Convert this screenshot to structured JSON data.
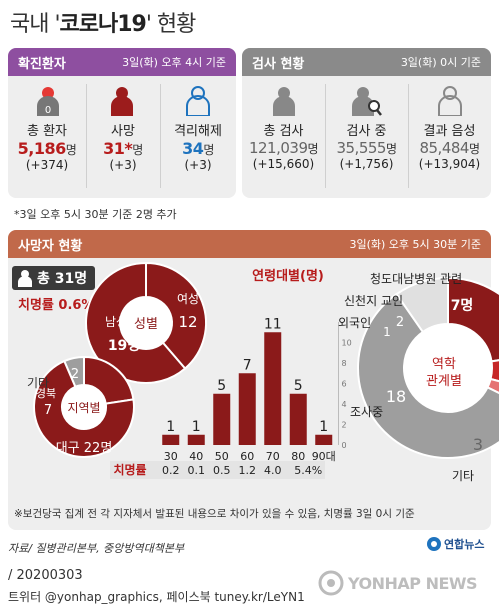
{
  "title_pre": "국내 '",
  "title_bold": "코로나19",
  "title_post": "' 현황",
  "confirmed": {
    "header": "확진환자",
    "date": "3일(화) 오후 4시 기준",
    "items": [
      {
        "label": "총 환자",
        "value": "5,186",
        "unit": "명",
        "change": "(+374)",
        "color": "#b71c1c"
      },
      {
        "label": "사망",
        "value": "31*",
        "unit": "명",
        "change": "(+3)",
        "color": "#b71c1c"
      },
      {
        "label": "격리해제",
        "value": "34",
        "unit": "명",
        "change": "(+3)",
        "color": "#1e73be"
      }
    ]
  },
  "tests": {
    "header": "검사 현황",
    "date": "3일(화) 0시 기준",
    "items": [
      {
        "label": "총 검사",
        "value": "121,039",
        "unit": "명",
        "change": "(+15,660)"
      },
      {
        "label": "검사 중",
        "value": "35,555",
        "unit": "명",
        "change": "(+1,756)"
      },
      {
        "label": "결과 음성",
        "value": "85,484",
        "unit": "명",
        "change": "(+13,904)"
      }
    ]
  },
  "footnote": "*3일 오후 5시 30분 기준 2명 추가",
  "deaths": {
    "header": "사망자 현황",
    "date": "3일(화) 오후 5시 30분 기준",
    "total": "총 31명",
    "fatality": "치명률 0.6%",
    "note": "※보건당국 집계 전 각 지자체서 발표된 내용으로 차이가 있을 수 있음, 치명률 3일 0시 기준"
  },
  "source": "자료/ 질병관리본부, 중앙방역대책본부",
  "logo_text": "연합뉴스",
  "date_line": "/ 20200303",
  "social": "트위터 @yonhap_graphics, 페이스북 tuney.kr/LeYN1",
  "watermark": "YONHAP NEWS",
  "chart_data": [
    {
      "type": "pie",
      "title": "성별",
      "categories": [
        "여성",
        "남성"
      ],
      "values": [
        12,
        19
      ],
      "value_labels": [
        "12",
        "19명"
      ],
      "colors": [
        "#8b1a1a",
        "#8b1a1a"
      ]
    },
    {
      "type": "pie",
      "title": "지역별",
      "categories": [
        "기타",
        "경북",
        "대구"
      ],
      "values": [
        2,
        7,
        22
      ],
      "value_labels": [
        "2",
        "7",
        "22명"
      ],
      "colors": [
        "#9e9e9e",
        "#8b1a1a",
        "#8b1a1a"
      ]
    },
    {
      "type": "bar",
      "title": "연령대별(명)",
      "categories": [
        "30",
        "40",
        "50",
        "60",
        "70",
        "80",
        "90대"
      ],
      "values": [
        1,
        1,
        5,
        7,
        11,
        5,
        1
      ],
      "ylim": [
        0,
        12
      ],
      "yticks": [
        0,
        2,
        4,
        6,
        8,
        10
      ],
      "row_label": "치명률",
      "fatality_rates": [
        "0.2",
        "0.1",
        "0.5",
        "1.2",
        "4.0",
        "5.4%",
        ""
      ],
      "color": "#8b1a1a"
    },
    {
      "type": "pie",
      "title": "역학 관계별",
      "categories": [
        "청도대남병원 관련",
        "신천지 교인",
        "외국인",
        "조사중",
        "기타"
      ],
      "values": [
        7,
        2,
        1,
        18,
        3
      ],
      "value_labels": [
        "7명",
        "2",
        "1",
        "18",
        "3"
      ],
      "colors": [
        "#8b1a1a",
        "#c62828",
        "#e57373",
        "#9e9e9e",
        "#e0e0e0"
      ]
    }
  ]
}
